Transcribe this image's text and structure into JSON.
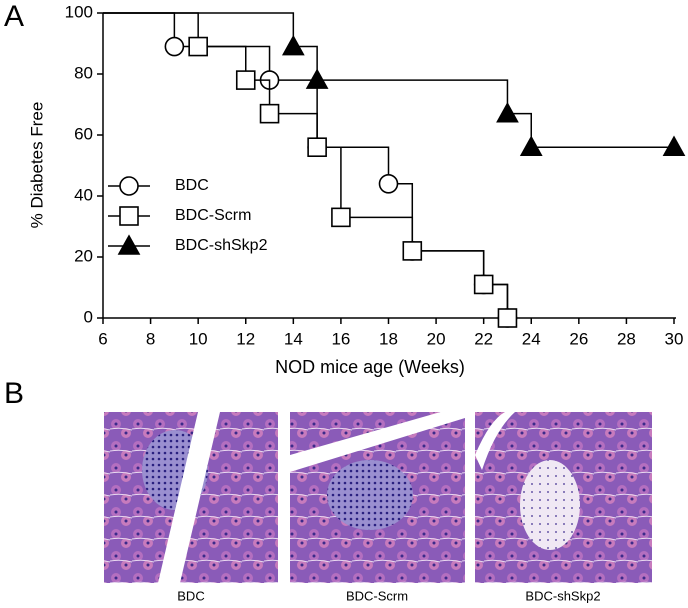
{
  "panel_labels": [
    "A",
    "B"
  ],
  "chart_data": {
    "type": "step",
    "xlabel": "NOD mice age (Weeks)",
    "ylabel": "% Diabetes Free",
    "xlim": [
      6,
      30
    ],
    "xticks": [
      6,
      8,
      10,
      12,
      14,
      16,
      18,
      20,
      22,
      24,
      26,
      28,
      30
    ],
    "ylim": [
      0,
      100
    ],
    "yticks": [
      0,
      20,
      40,
      60,
      80,
      100
    ],
    "grid": false,
    "legend": "left",
    "series": [
      {
        "name": "BDC",
        "color": "#000000",
        "marker": "circle",
        "x": [
          6,
          9,
          13,
          15,
          18,
          19,
          22,
          23
        ],
        "values": [
          100,
          89,
          78,
          56,
          44,
          22,
          11,
          0
        ]
      },
      {
        "name": "BDC-Scrm",
        "color": "#000000",
        "marker": "square",
        "x": [
          6,
          10,
          12,
          13,
          15,
          16,
          19,
          22,
          23
        ],
        "values": [
          100,
          89,
          78,
          67,
          56,
          33,
          22,
          11,
          0
        ]
      },
      {
        "name": "BDC-shSkp2",
        "color": "#000000",
        "marker": "triangle",
        "x": [
          6,
          14,
          15,
          23,
          24,
          30
        ],
        "values": [
          100,
          89,
          78,
          67,
          56,
          56
        ]
      }
    ]
  },
  "images": {
    "captions": [
      "BDC",
      "BDC-Scrm",
      "BDC-shSkp2"
    ]
  }
}
